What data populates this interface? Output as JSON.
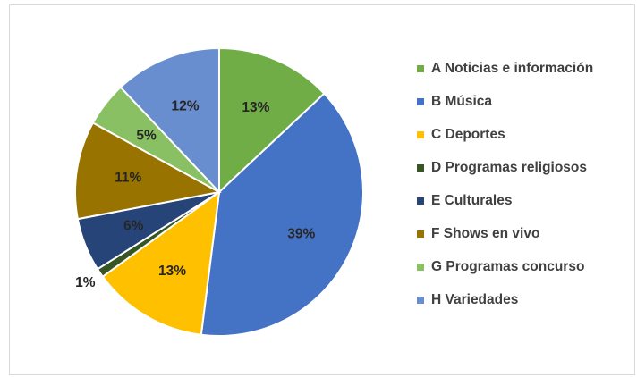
{
  "chart_data": {
    "type": "pie",
    "title": "",
    "legend_position": "right",
    "start_angle_deg": 0,
    "direction": "clockwise",
    "slices": [
      {
        "letter": "A",
        "label": "A Noticias e información",
        "value": 13,
        "value_label": "13%",
        "color": "#70ad47"
      },
      {
        "letter": "B",
        "label": "B Música",
        "value": 39,
        "value_label": "39%",
        "color": "#4472c4"
      },
      {
        "letter": "C",
        "label": "C Deportes",
        "value": 13,
        "value_label": "13%",
        "color": "#ffc000"
      },
      {
        "letter": "D",
        "label": "D Programas religiosos",
        "value": 1,
        "value_label": "1%",
        "color": "#375623"
      },
      {
        "letter": "E",
        "label": "E Culturales",
        "value": 6,
        "value_label": "6%",
        "color": "#264478"
      },
      {
        "letter": "F",
        "label": "F Shows en vivo",
        "value": 11,
        "value_label": "11%",
        "color": "#997300"
      },
      {
        "letter": "G",
        "label": "G Programas concurso",
        "value": 5,
        "value_label": "5%",
        "color": "#8ac064"
      },
      {
        "letter": "H",
        "label": "H Variedades",
        "value": 12,
        "value_label": "12%",
        "color": "#698ed0"
      }
    ]
  }
}
